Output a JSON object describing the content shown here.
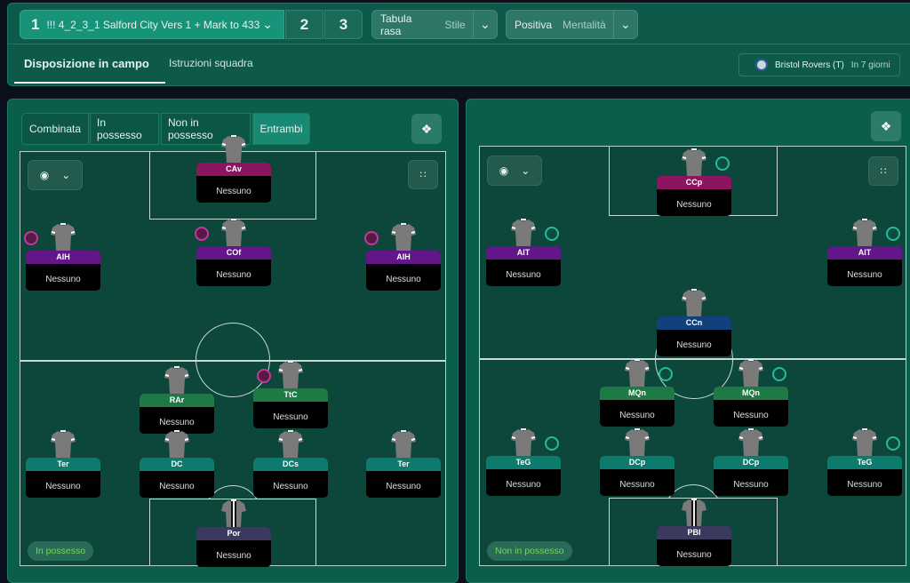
{
  "header": {
    "tactic_number": "1",
    "tactic_name": "!!! 4_2_3_1 Salford City Vers 1 + Mark to 433",
    "slot2": "2",
    "slot3": "3",
    "style": {
      "value": "Tabula rasa",
      "label": "Stile"
    },
    "mentality": {
      "value": "Positiva",
      "label": "Mentalità"
    },
    "tabs": [
      "Disposizione in campo",
      "Istruzioni squadra"
    ],
    "fixture": {
      "opponent": "Bristol Rovers (T)",
      "when": "In 7 giorni"
    }
  },
  "left": {
    "segments": [
      "Combinata",
      "In possesso",
      "Non in possesso",
      "Entrambi"
    ],
    "active_segment": "Entrambi",
    "phase_label": "In possesso",
    "players": [
      {
        "role": "CAv",
        "name": "Nessuno",
        "color": "#8c1560"
      },
      {
        "role": "AIH",
        "name": "Nessuno",
        "color": "#62168a",
        "badge": "#5a1845"
      },
      {
        "role": "COf",
        "name": "Nessuno",
        "color": "#62168a",
        "badge": "#5a1845"
      },
      {
        "role": "AIH",
        "name": "Nessuno",
        "color": "#62168a",
        "badge": "#5a1845"
      },
      {
        "role": "RAr",
        "name": "Nessuno",
        "color": "#1d7a45"
      },
      {
        "role": "TtC",
        "name": "Nessuno",
        "color": "#1d7a45",
        "badge": "#5a1845"
      },
      {
        "role": "Ter",
        "name": "Nessuno",
        "color": "#0d7a6e"
      },
      {
        "role": "DC",
        "name": "Nessuno",
        "color": "#0d7a6e"
      },
      {
        "role": "DCs",
        "name": "Nessuno",
        "color": "#0d7a6e"
      },
      {
        "role": "Ter",
        "name": "Nessuno",
        "color": "#0d7a6e"
      },
      {
        "role": "Por",
        "name": "Nessuno",
        "color": "#3b3a5e",
        "gk": true
      }
    ]
  },
  "right": {
    "phase_label": "Non in possesso",
    "players": [
      {
        "role": "CCp",
        "name": "Nessuno",
        "color": "#8c1560",
        "badge": "#0f4a42"
      },
      {
        "role": "AIT",
        "name": "Nessuno",
        "color": "#62168a",
        "badge": "#0f4a42"
      },
      {
        "role": "AIT",
        "name": "Nessuno",
        "color": "#62168a",
        "badge": "#0f4a42"
      },
      {
        "role": "CCn",
        "name": "Nessuno",
        "color": "#12407a"
      },
      {
        "role": "MQn",
        "name": "Nessuno",
        "color": "#1d7a45",
        "badge": "#0f4a42"
      },
      {
        "role": "MQn",
        "name": "Nessuno",
        "color": "#1d7a45",
        "badge": "#0f4a42"
      },
      {
        "role": "TeG",
        "name": "Nessuno",
        "color": "#0d7a6e",
        "badge": "#0f4a42"
      },
      {
        "role": "DCp",
        "name": "Nessuno",
        "color": "#0d7a6e"
      },
      {
        "role": "DCp",
        "name": "Nessuno",
        "color": "#0d7a6e"
      },
      {
        "role": "TeG",
        "name": "Nessuno",
        "color": "#0d7a6e",
        "badge": "#0f4a42"
      },
      {
        "role": "PBI",
        "name": "Nessuno",
        "color": "#3b3a5e",
        "gk": true
      }
    ]
  }
}
